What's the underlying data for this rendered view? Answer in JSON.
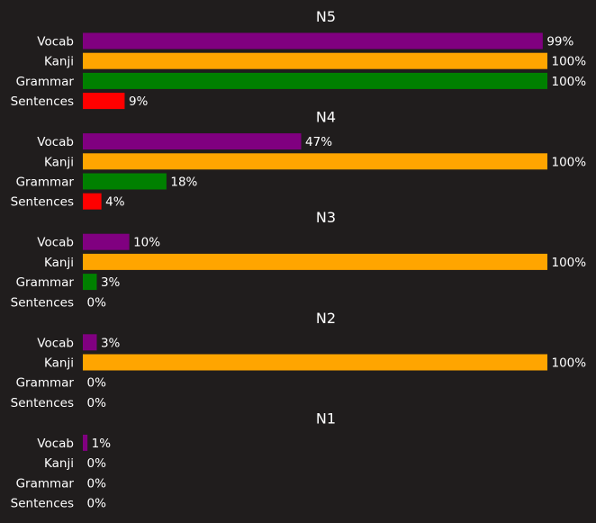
{
  "colors": {
    "background": "#201d1d",
    "text": "#ffffff",
    "Vocab": "#800080",
    "Kanji": "#ffa500",
    "Grammar": "#008000",
    "Sentences": "#ff0000"
  },
  "chart_data": [
    {
      "type": "bar",
      "orientation": "horizontal",
      "title": "N5",
      "categories": [
        "Vocab",
        "Kanji",
        "Grammar",
        "Sentences"
      ],
      "values": [
        99,
        100,
        100,
        9
      ],
      "labels": [
        "99%",
        "100%",
        "100%",
        "9%"
      ],
      "xlim": [
        0,
        100
      ]
    },
    {
      "type": "bar",
      "orientation": "horizontal",
      "title": "N4",
      "categories": [
        "Vocab",
        "Kanji",
        "Grammar",
        "Sentences"
      ],
      "values": [
        47,
        100,
        18,
        4
      ],
      "labels": [
        "47%",
        "100%",
        "18%",
        "4%"
      ],
      "xlim": [
        0,
        100
      ]
    },
    {
      "type": "bar",
      "orientation": "horizontal",
      "title": "N3",
      "categories": [
        "Vocab",
        "Kanji",
        "Grammar",
        "Sentences"
      ],
      "values": [
        10,
        100,
        3,
        0
      ],
      "labels": [
        "10%",
        "100%",
        "3%",
        "0%"
      ],
      "xlim": [
        0,
        100
      ]
    },
    {
      "type": "bar",
      "orientation": "horizontal",
      "title": "N2",
      "categories": [
        "Vocab",
        "Kanji",
        "Grammar",
        "Sentences"
      ],
      "values": [
        3,
        100,
        0,
        0
      ],
      "labels": [
        "3%",
        "100%",
        "0%",
        "0%"
      ],
      "xlim": [
        0,
        100
      ]
    },
    {
      "type": "bar",
      "orientation": "horizontal",
      "title": "N1",
      "categories": [
        "Vocab",
        "Kanji",
        "Grammar",
        "Sentences"
      ],
      "values": [
        1,
        0,
        0,
        0
      ],
      "labels": [
        "1%",
        "0%",
        "0%",
        "0%"
      ],
      "xlim": [
        0,
        100
      ]
    }
  ]
}
